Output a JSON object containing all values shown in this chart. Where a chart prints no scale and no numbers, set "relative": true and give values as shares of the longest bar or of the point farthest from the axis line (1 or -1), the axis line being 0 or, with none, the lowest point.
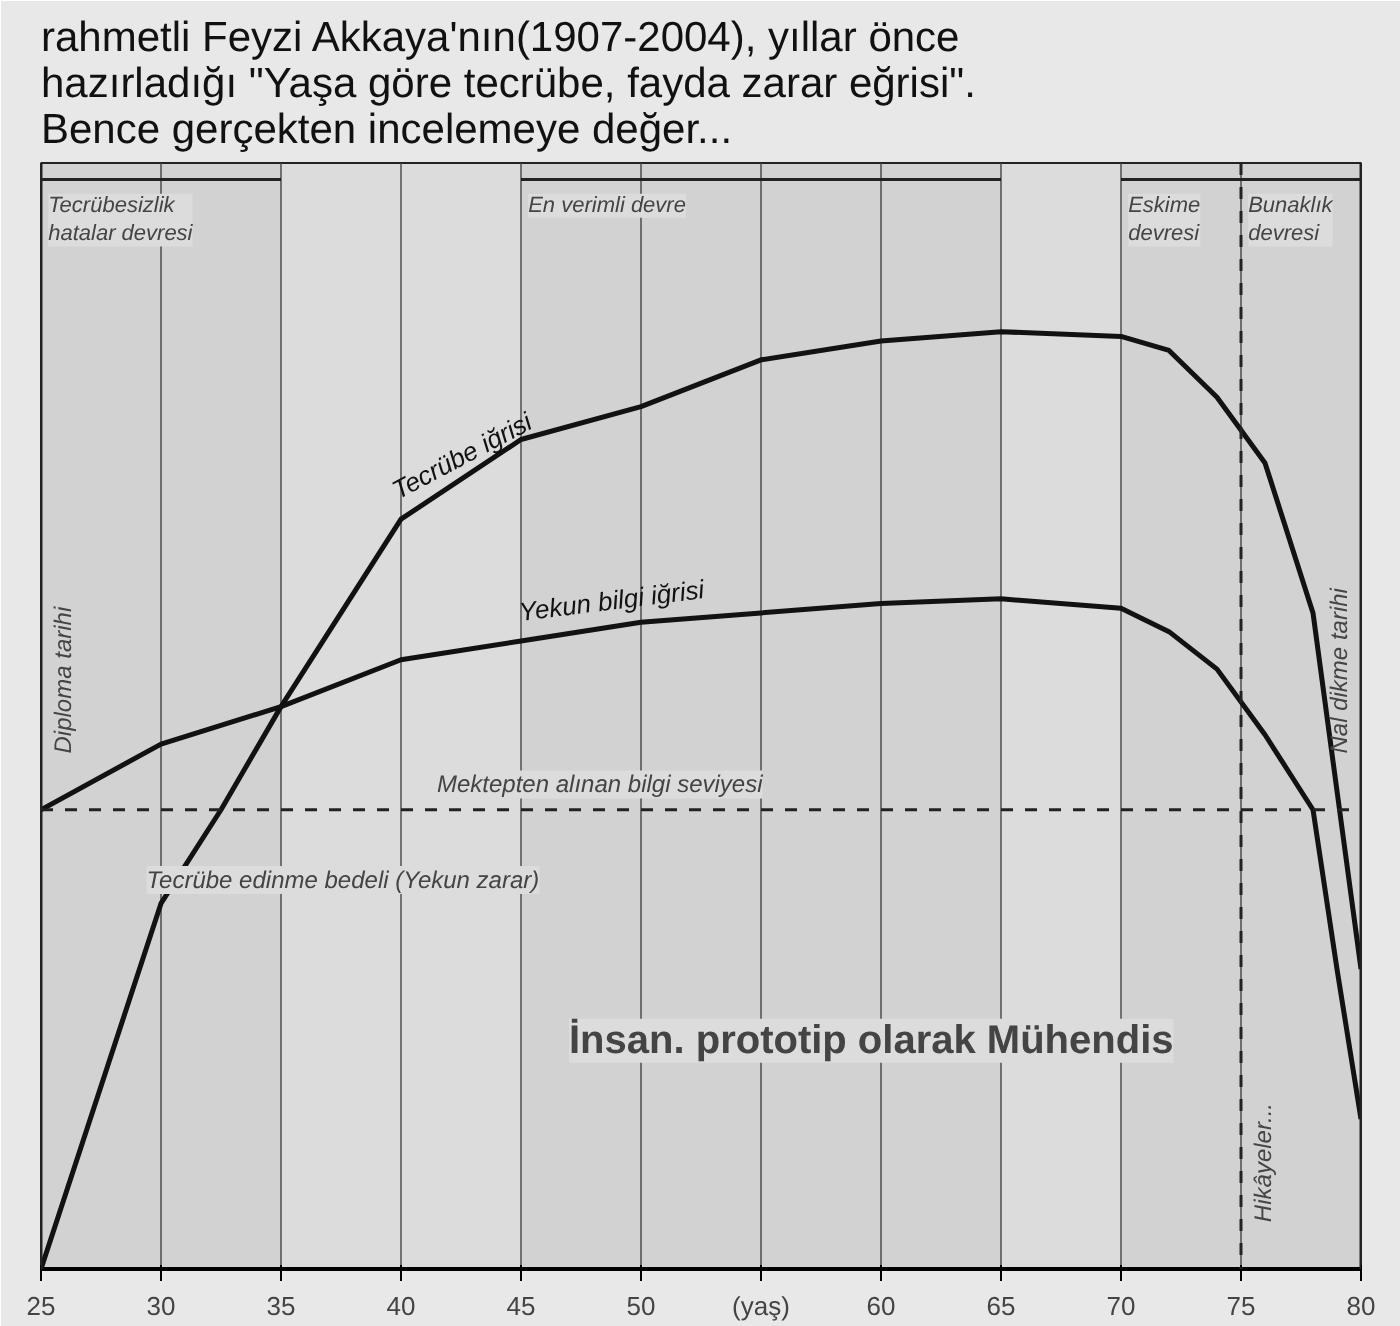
{
  "chart_data": {
    "type": "line",
    "title": "rahmetli Feyzi Akkaya'nın(1907-2004), yıllar önce hazırladığı \"Yaşa göre tecrübe, fayda zarar eğrisi\". Bence gerçekten incelemeye değer...",
    "relative": true,
    "grid": "x",
    "legend": false,
    "marker": "none",
    "line_style": "solid",
    "xlim": [
      25,
      80
    ],
    "xticks": [
      25,
      30,
      35,
      40,
      45,
      {
        "value": 55,
        "label": "(yaş)"
      },
      50,
      60,
      65,
      70,
      75,
      80
    ],
    "series": [
      {
        "name": "Tecrübe iğrisi",
        "color": "#111111",
        "x": [
          25,
          30,
          32.5,
          35,
          40,
          45,
          50,
          55,
          60,
          65,
          70,
          72,
          74,
          76,
          78,
          79,
          80
        ],
        "values": [
          0,
          0.39,
          0.49,
          0.6,
          0.8,
          0.885,
          0.92,
          0.97,
          0.99,
          1.0,
          0.995,
          0.98,
          0.93,
          0.86,
          0.7,
          0.51,
          0.32
        ]
      },
      {
        "name": "Yekun bilgi iğrisi",
        "color": "#111111",
        "x": [
          25,
          30,
          35,
          40,
          45,
          50,
          55,
          60,
          65,
          70,
          72,
          74,
          76,
          77,
          78,
          79,
          80
        ],
        "values": [
          0.49,
          0.56,
          0.6,
          0.65,
          0.67,
          0.69,
          0.7,
          0.71,
          0.715,
          0.705,
          0.68,
          0.64,
          0.57,
          0.53,
          0.49,
          0.32,
          0.16
        ]
      }
    ],
    "ref_lines": [
      {
        "axis": "y",
        "value": 0.49,
        "label": "Mektepten alınan bilgi seviyesi",
        "line_style": "dashed"
      },
      {
        "axis": "x",
        "value": 25,
        "label": "Diploma tarihi",
        "line_style": "solid"
      },
      {
        "axis": "x",
        "value": 80,
        "label": "Nal dikme tarihi",
        "line_style": "solid"
      },
      {
        "axis": "x",
        "value": 75,
        "label": "Hikâyeler...",
        "line_style": "dashed"
      }
    ],
    "bands": [
      {
        "axis": "x",
        "from": 25,
        "to": 35,
        "label": "Tecrübesizlik hatalar devresi"
      },
      {
        "axis": "x",
        "from": 45,
        "to": 65,
        "label": "En verimli devre"
      },
      {
        "axis": "x",
        "from": 70,
        "to": 75,
        "label": "Eskime devresi"
      },
      {
        "axis": "x",
        "from": 75,
        "to": 80,
        "label": "Bunaklık devresi"
      }
    ],
    "annotations": [
      "Tecrübe edinme bedeli (Yekun zarar)",
      "İnsan. prototip olarak Mühendis"
    ]
  }
}
